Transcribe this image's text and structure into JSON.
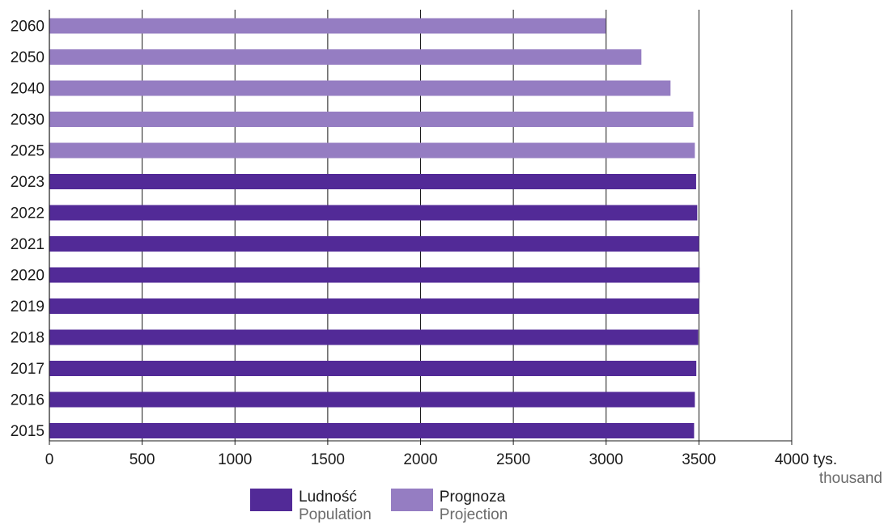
{
  "chart_data": {
    "type": "bar",
    "orientation": "horizontal",
    "categories": [
      "2060",
      "2050",
      "2040",
      "2030",
      "2025",
      "2023",
      "2022",
      "2021",
      "2020",
      "2019",
      "2018",
      "2017",
      "2016",
      "2015"
    ],
    "series": [
      {
        "name": "Ludność",
        "name_en": "Population",
        "color": "#522a97",
        "values": [
          null,
          null,
          null,
          null,
          null,
          3485,
          3491,
          3500,
          3504,
          3501,
          3496,
          3486,
          3478,
          3474
        ]
      },
      {
        "name": "Prognoza",
        "name_en": "Projection",
        "color": "#957dc2",
        "values": [
          2998,
          3190,
          3347,
          3470,
          3478,
          null,
          null,
          null,
          null,
          null,
          null,
          null,
          null,
          null
        ]
      }
    ],
    "xlim": [
      0,
      4000
    ],
    "xticks": [
      "0",
      "500",
      "1000",
      "1500",
      "2000",
      "2500",
      "3000",
      "3500",
      "4000 tys."
    ],
    "xlabel_secondary": "thousand",
    "grid": true,
    "legend_position": "bottom"
  }
}
